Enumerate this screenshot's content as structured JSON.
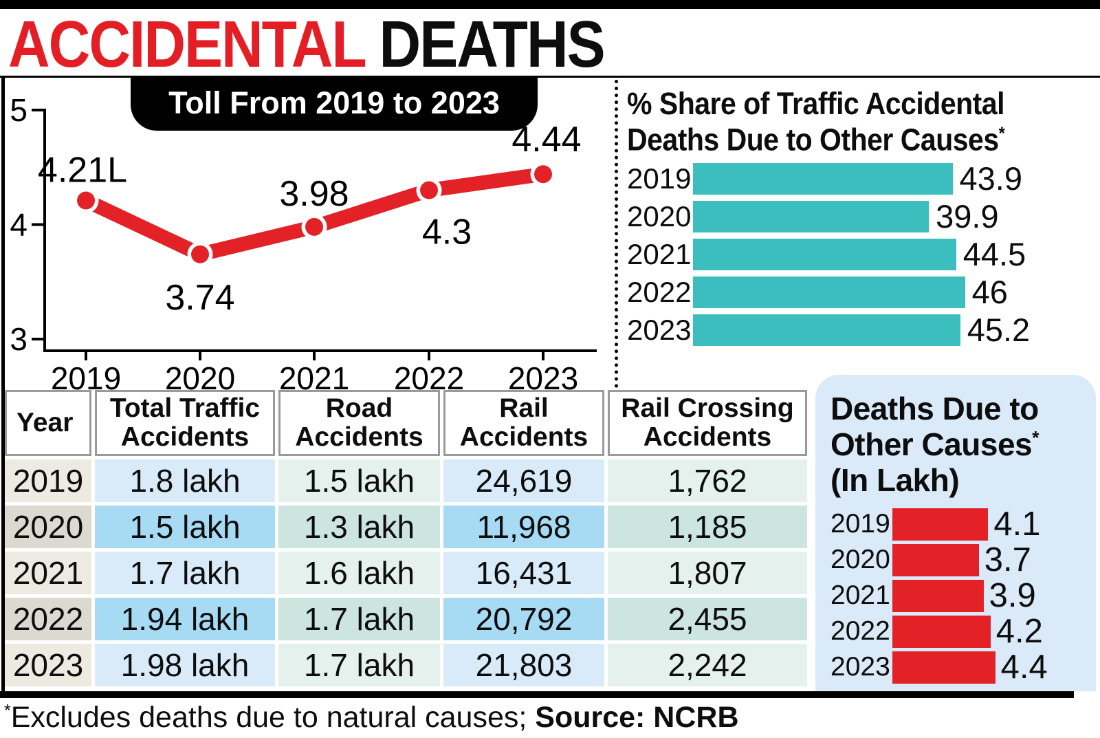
{
  "header": {
    "title_red": "ACCIDENTAL",
    "title_black": " DEATHS"
  },
  "toll_chart": {
    "badge": "Toll From 2019 to 2023"
  },
  "share_chart": {
    "line1": "% Share of Traffic Accidental",
    "line2": "Deaths Due to Other Causes",
    "sup": "*"
  },
  "panel_chart": {
    "line1": "Deaths Due to",
    "line2": "Other Causes",
    "sup": "*",
    "line3": "(In Lakh)"
  },
  "table": {
    "headers": [
      "Year",
      "Total Traffic Accidents",
      "Road Accidents",
      "Rail Accidents",
      "Rail Crossing Accidents"
    ],
    "rows": [
      [
        "2019",
        "1.8 lakh",
        "1.5 lakh",
        "24,619",
        "1,762"
      ],
      [
        "2020",
        "1.5 lakh",
        "1.3 lakh",
        "11,968",
        "1,185"
      ],
      [
        "2021",
        "1.7 lakh",
        "1.6 lakh",
        "16,431",
        "1,807"
      ],
      [
        "2022",
        "1.94 lakh",
        "1.7 lakh",
        "20,792",
        "2,455"
      ],
      [
        "2023",
        "1.98 lakh",
        "1.7 lakh",
        "21,803",
        "2,242"
      ]
    ]
  },
  "footnote": {
    "sup": "*",
    "text": "Excludes deaths due to natural causes; ",
    "source": "Source: NCRB"
  },
  "colors": {
    "accent_red": "#E32228",
    "teal": "#3CBEBE",
    "panel_bg": "#DAEAF8",
    "year_cell_light": "#ECEAE1",
    "year_cell_dark": "#DBD9D0",
    "blue_cell_light": "#D9EBF9",
    "blue_cell_dark": "#A7DBF3",
    "green_cell_light": "#E5F1ED",
    "green_cell_dark": "#CCE5DF"
  },
  "chart_data": [
    {
      "type": "line",
      "title": "Toll From 2019 to 2023",
      "x": [
        "2019",
        "2020",
        "2021",
        "2022",
        "2023"
      ],
      "values": [
        4.21,
        3.74,
        3.98,
        4.3,
        4.44
      ],
      "point_labels": [
        "4.21L",
        "3.74",
        "3.98",
        "4.3",
        "4.44"
      ],
      "ylim": [
        3,
        5
      ],
      "yticks": [
        5,
        4,
        3
      ],
      "unit": "lakh deaths",
      "line_color": "#E32228",
      "grid": false,
      "legend": "none"
    },
    {
      "type": "bar",
      "orientation": "horizontal",
      "title": "% Share of Traffic Accidental Deaths Due to Other Causes*",
      "categories": [
        "2019",
        "2020",
        "2021",
        "2022",
        "2023"
      ],
      "values": [
        43.9,
        39.9,
        44.5,
        46,
        45.2
      ],
      "xlim": [
        0,
        46
      ],
      "bar_color": "#3CBEBE",
      "value_labels": [
        "43.9",
        "39.9",
        "44.5",
        "46",
        "45.2"
      ]
    },
    {
      "type": "bar",
      "orientation": "horizontal",
      "title": "Deaths Due to Other Causes* (In Lakh)",
      "categories": [
        "2019",
        "2020",
        "2021",
        "2022",
        "2023"
      ],
      "values": [
        4.1,
        3.7,
        3.9,
        4.2,
        4.4
      ],
      "xlim": [
        0,
        4.4
      ],
      "bar_color": "#E32228",
      "value_labels": [
        "4.1",
        "3.7",
        "3.9",
        "4.2",
        "4.4"
      ]
    }
  ]
}
